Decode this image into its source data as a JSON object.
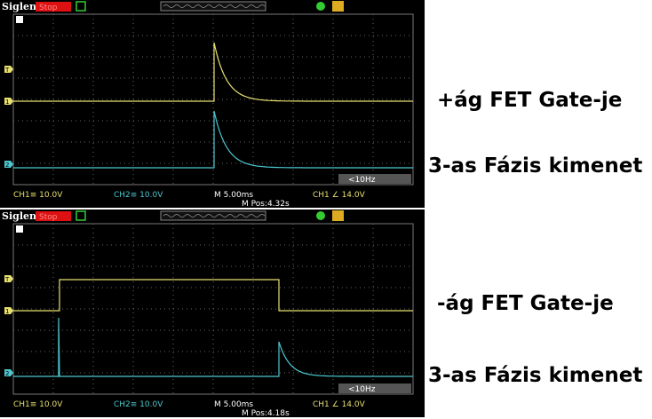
{
  "scopes": [
    {
      "brand": "Siglent",
      "status": "Stop",
      "ch1": "CH1≡ 10.0V",
      "ch2": "CH2≡ 10.0V",
      "timebase": "M 5.00ms",
      "position": "M Pos:4.32s",
      "trigger": "CH1 ∠ 14.0V",
      "frequency": "<10Hz",
      "markers": [
        "T",
        "1",
        "2"
      ]
    },
    {
      "brand": "Siglent",
      "status": "Stop",
      "ch1": "CH1≡ 10.0V",
      "ch2": "CH2≡ 10.0V",
      "timebase": "M 5.00ms",
      "position": "M Pos:4.18s",
      "trigger": "CH1 ∠ 14.0V",
      "frequency": "<10Hz",
      "markers": [
        "T",
        "1",
        "2"
      ]
    }
  ],
  "labels": [
    "+ág FET Gate-je",
    "3-as Fázis kimenet",
    "-ág FET Gate-je",
    "3-as Fázis kimenet"
  ]
}
